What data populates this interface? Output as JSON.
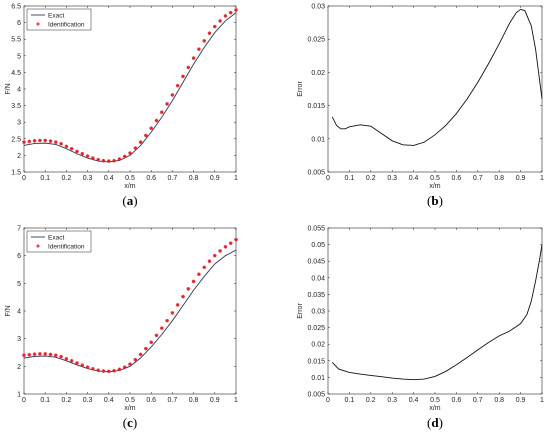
{
  "colors": {
    "exact_line": "#2b3a55",
    "identification_marker": "#e8202a",
    "error_line": "#111111"
  },
  "legend": {
    "exact": "Exact",
    "identification": "Identification"
  },
  "chart_data": [
    {
      "panel": "a",
      "caption": "(a)",
      "type": "line",
      "xlabel": "x/m",
      "ylabel": "F/N",
      "xlim": [
        0,
        1
      ],
      "ylim": [
        1.5,
        6.5
      ],
      "xticks": [
        "0",
        "0.1",
        "0.2",
        "0.3",
        "0.4",
        "0.5",
        "0.6",
        "0.7",
        "0.8",
        "0.9",
        "1"
      ],
      "yticks": [
        "1.5",
        "2",
        "2.5",
        "3",
        "3.5",
        "4",
        "4.5",
        "5",
        "5.5",
        "6",
        "6.5"
      ],
      "legend_position": "top-left",
      "grid": false,
      "series": [
        {
          "name": "Exact",
          "style": "line",
          "x": [
            0,
            0.05,
            0.1,
            0.15,
            0.2,
            0.25,
            0.3,
            0.35,
            0.4,
            0.45,
            0.5,
            0.55,
            0.6,
            0.65,
            0.7,
            0.75,
            0.8,
            0.85,
            0.9,
            0.95,
            1
          ],
          "y": [
            2.3,
            2.36,
            2.37,
            2.33,
            2.2,
            2.05,
            1.92,
            1.83,
            1.8,
            1.85,
            2.0,
            2.3,
            2.7,
            3.15,
            3.65,
            4.2,
            4.75,
            5.25,
            5.7,
            6.05,
            6.3
          ]
        },
        {
          "name": "Identification",
          "style": "markers",
          "x": [
            0,
            0.025,
            0.05,
            0.075,
            0.1,
            0.125,
            0.15,
            0.175,
            0.2,
            0.225,
            0.25,
            0.275,
            0.3,
            0.325,
            0.35,
            0.375,
            0.4,
            0.425,
            0.45,
            0.475,
            0.5,
            0.525,
            0.55,
            0.575,
            0.6,
            0.625,
            0.65,
            0.675,
            0.7,
            0.725,
            0.75,
            0.775,
            0.8,
            0.825,
            0.85,
            0.875,
            0.9,
            0.925,
            0.95,
            0.975,
            1
          ],
          "y": [
            2.4,
            2.42,
            2.44,
            2.45,
            2.45,
            2.43,
            2.4,
            2.35,
            2.27,
            2.2,
            2.12,
            2.05,
            1.98,
            1.92,
            1.87,
            1.84,
            1.83,
            1.84,
            1.89,
            1.97,
            2.07,
            2.22,
            2.4,
            2.6,
            2.82,
            3.05,
            3.3,
            3.55,
            3.82,
            4.1,
            4.38,
            4.65,
            4.93,
            5.2,
            5.45,
            5.68,
            5.88,
            6.05,
            6.2,
            6.3,
            6.38
          ]
        }
      ]
    },
    {
      "panel": "b",
      "caption": "(b)",
      "type": "line",
      "xlabel": "x/m",
      "ylabel": "Error",
      "xlim": [
        0,
        1
      ],
      "ylim": [
        0.005,
        0.03
      ],
      "xticks": [
        "0",
        "0.1",
        "0.2",
        "0.3",
        "0.4",
        "0.5",
        "0.6",
        "0.7",
        "0.8",
        "0.9",
        "1"
      ],
      "yticks": [
        "0.005",
        "0.01",
        "0.015",
        "0.02",
        "0.025",
        "0.03"
      ],
      "grid": false,
      "series": [
        {
          "name": "",
          "style": "line",
          "x": [
            0.02,
            0.04,
            0.06,
            0.08,
            0.1,
            0.15,
            0.2,
            0.25,
            0.3,
            0.35,
            0.4,
            0.45,
            0.5,
            0.55,
            0.6,
            0.65,
            0.7,
            0.75,
            0.8,
            0.85,
            0.88,
            0.9,
            0.92,
            0.95,
            0.97,
            1
          ],
          "y": [
            0.0133,
            0.012,
            0.0115,
            0.0115,
            0.0118,
            0.0121,
            0.0119,
            0.0108,
            0.0097,
            0.0091,
            0.009,
            0.0095,
            0.0106,
            0.012,
            0.0138,
            0.016,
            0.0185,
            0.0213,
            0.0243,
            0.0275,
            0.029,
            0.0295,
            0.0293,
            0.027,
            0.0235,
            0.016
          ]
        }
      ]
    },
    {
      "panel": "c",
      "caption": "(c)",
      "type": "line",
      "xlabel": "x/m",
      "ylabel": "F/N",
      "xlim": [
        0,
        1
      ],
      "ylim": [
        1,
        7
      ],
      "xticks": [
        "0",
        "0.1",
        "0.2",
        "0.3",
        "0.4",
        "0.5",
        "0.6",
        "0.7",
        "0.8",
        "0.9",
        "1"
      ],
      "yticks": [
        "1",
        "2",
        "3",
        "4",
        "5",
        "6",
        "7"
      ],
      "legend_position": "top-left",
      "grid": false,
      "series": [
        {
          "name": "Exact",
          "style": "line",
          "x": [
            0,
            0.05,
            0.1,
            0.15,
            0.2,
            0.25,
            0.3,
            0.35,
            0.4,
            0.45,
            0.5,
            0.55,
            0.6,
            0.65,
            0.7,
            0.75,
            0.8,
            0.85,
            0.9,
            0.95,
            1
          ],
          "y": [
            2.3,
            2.36,
            2.37,
            2.33,
            2.2,
            2.05,
            1.92,
            1.83,
            1.8,
            1.85,
            2.0,
            2.3,
            2.7,
            3.15,
            3.65,
            4.2,
            4.75,
            5.25,
            5.7,
            6.0,
            6.2
          ]
        },
        {
          "name": "Identification",
          "style": "markers",
          "x": [
            0,
            0.025,
            0.05,
            0.075,
            0.1,
            0.125,
            0.15,
            0.175,
            0.2,
            0.225,
            0.25,
            0.275,
            0.3,
            0.325,
            0.35,
            0.375,
            0.4,
            0.425,
            0.45,
            0.475,
            0.5,
            0.525,
            0.55,
            0.575,
            0.6,
            0.625,
            0.65,
            0.675,
            0.7,
            0.725,
            0.75,
            0.775,
            0.8,
            0.825,
            0.85,
            0.875,
            0.9,
            0.925,
            0.95,
            0.975,
            1
          ],
          "y": [
            2.4,
            2.42,
            2.44,
            2.45,
            2.45,
            2.43,
            2.4,
            2.35,
            2.27,
            2.2,
            2.12,
            2.04,
            1.97,
            1.91,
            1.86,
            1.83,
            1.82,
            1.84,
            1.89,
            1.97,
            2.08,
            2.24,
            2.43,
            2.64,
            2.87,
            3.12,
            3.38,
            3.65,
            3.93,
            4.22,
            4.52,
            4.8,
            5.07,
            5.33,
            5.58,
            5.8,
            6.0,
            6.17,
            6.32,
            6.45,
            6.58
          ]
        }
      ]
    },
    {
      "panel": "d",
      "caption": "(d)",
      "type": "line",
      "xlabel": "x/m",
      "ylabel": "Error",
      "xlim": [
        0,
        1
      ],
      "ylim": [
        0.005,
        0.055
      ],
      "xticks": [
        "0",
        "0.1",
        "0.2",
        "0.3",
        "0.4",
        "0.5",
        "0.6",
        "0.7",
        "0.8",
        "0.9",
        "1"
      ],
      "yticks": [
        "0.005",
        "0.01",
        "0.015",
        "0.02",
        "0.025",
        "0.03",
        "0.035",
        "0.04",
        "0.045",
        "0.05",
        "0.055"
      ],
      "grid": false,
      "series": [
        {
          "name": "",
          "style": "line",
          "x": [
            0.02,
            0.05,
            0.1,
            0.15,
            0.2,
            0.25,
            0.3,
            0.35,
            0.4,
            0.45,
            0.5,
            0.55,
            0.6,
            0.65,
            0.7,
            0.75,
            0.8,
            0.85,
            0.9,
            0.93,
            0.95,
            0.97,
            0.99,
            1
          ],
          "y": [
            0.0145,
            0.0125,
            0.0115,
            0.011,
            0.0106,
            0.0102,
            0.0098,
            0.0095,
            0.0093,
            0.0095,
            0.0103,
            0.0118,
            0.0138,
            0.016,
            0.0183,
            0.0205,
            0.0225,
            0.024,
            0.0262,
            0.029,
            0.033,
            0.039,
            0.046,
            0.05
          ]
        }
      ]
    }
  ]
}
